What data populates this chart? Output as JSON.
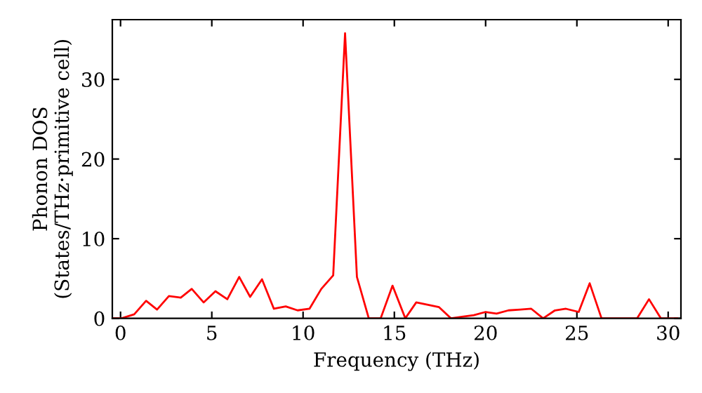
{
  "chart_data": {
    "type": "line",
    "xlabel": "Frequency (THz)",
    "ylabel": "Phonon DOS\n(States/THz·primitive cell)",
    "x": [
      -0.45,
      0.05,
      0.75,
      1.4,
      2.0,
      2.65,
      3.3,
      3.9,
      4.55,
      5.2,
      5.85,
      6.5,
      7.1,
      7.75,
      8.4,
      9.05,
      9.7,
      10.35,
      11.0,
      11.65,
      12.3,
      12.95,
      13.6,
      14.25,
      14.9,
      15.6,
      16.2,
      16.85,
      17.45,
      18.1,
      18.7,
      19.35,
      20.0,
      20.6,
      21.25,
      21.9,
      22.5,
      23.15,
      23.8,
      24.4,
      25.1,
      25.7,
      26.35,
      27.0,
      27.65,
      28.3,
      28.95,
      29.6,
      30.5
    ],
    "series": [
      {
        "color": "#ff0000",
        "values": [
          0,
          0,
          0.5,
          2.2,
          1.1,
          2.8,
          2.6,
          3.7,
          2.0,
          3.4,
          2.4,
          5.2,
          2.7,
          4.9,
          1.2,
          1.5,
          1.0,
          1.2,
          3.7,
          5.4,
          35.8,
          5.2,
          0,
          0,
          4.1,
          0,
          2.0,
          1.7,
          1.4,
          0,
          0.2,
          0.4,
          0.8,
          0.6,
          1.0,
          1.1,
          1.2,
          0.0,
          1.0,
          1.2,
          0.8,
          4.4,
          0,
          0,
          0,
          0,
          2.4,
          0,
          0
        ]
      }
    ],
    "xlim": [
      -0.45,
      30.7
    ],
    "ylim": [
      0,
      37.5
    ],
    "xticks": [
      0,
      5,
      10,
      15,
      20,
      25,
      30
    ],
    "yticks": [
      0,
      10,
      20,
      30
    ],
    "grid": false,
    "legend": false,
    "marker": "none",
    "line_style": "solid"
  }
}
